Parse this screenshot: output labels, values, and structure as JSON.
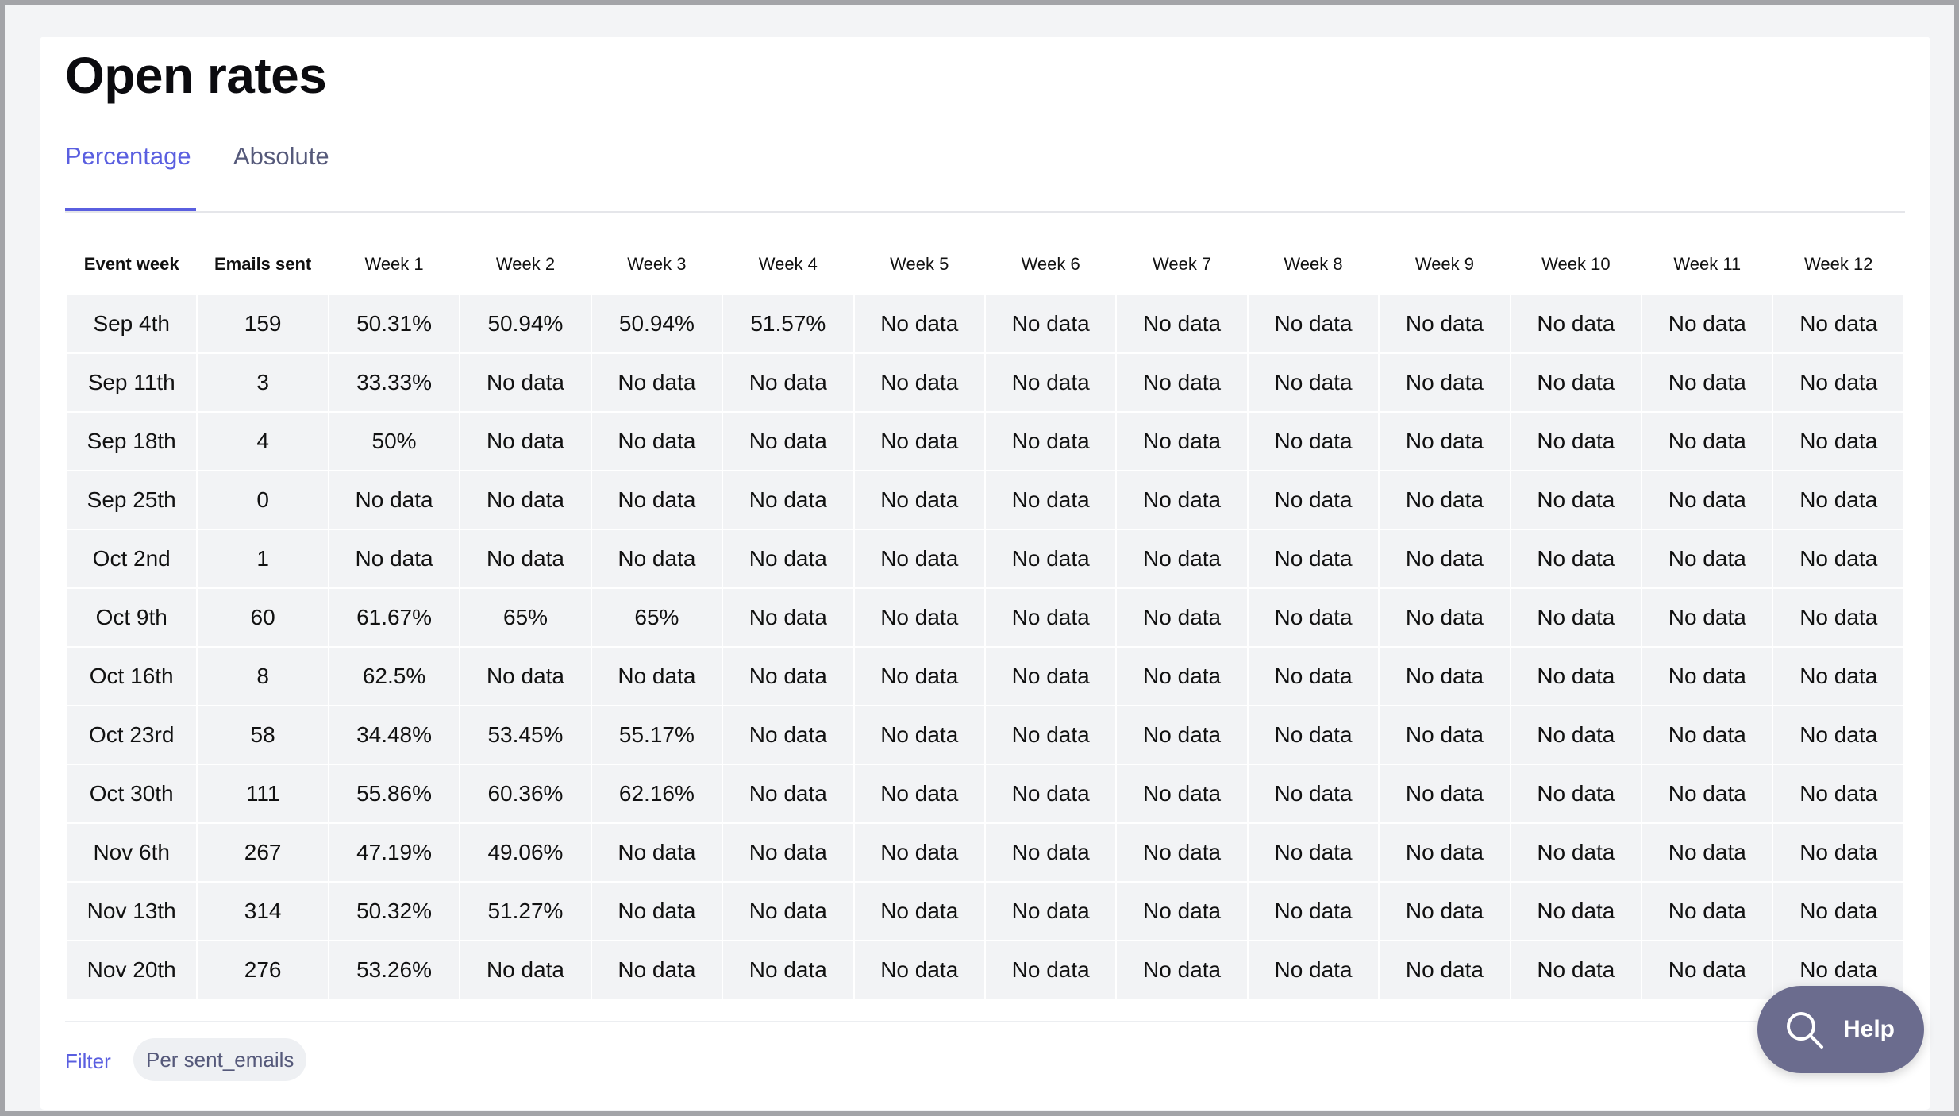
{
  "page": {
    "title": "Open rates"
  },
  "tabs": [
    {
      "label": "Percentage",
      "active": true
    },
    {
      "label": "Absolute",
      "active": false
    }
  ],
  "table": {
    "columns": [
      "Event week",
      "Emails sent",
      "Week 1",
      "Week 2",
      "Week 3",
      "Week 4",
      "Week 5",
      "Week 6",
      "Week 7",
      "Week 8",
      "Week 9",
      "Week 10",
      "Week 11",
      "Week 12"
    ],
    "no_data_label": "No data",
    "rows": [
      {
        "event_week": "Sep 4th",
        "emails_sent": "159",
        "weeks": [
          "50.31%",
          "50.94%",
          "50.94%",
          "51.57%",
          null,
          null,
          null,
          null,
          null,
          null,
          null,
          null
        ]
      },
      {
        "event_week": "Sep 11th",
        "emails_sent": "3",
        "weeks": [
          "33.33%",
          null,
          null,
          null,
          null,
          null,
          null,
          null,
          null,
          null,
          null,
          null
        ]
      },
      {
        "event_week": "Sep 18th",
        "emails_sent": "4",
        "weeks": [
          "50%",
          null,
          null,
          null,
          null,
          null,
          null,
          null,
          null,
          null,
          null,
          null
        ]
      },
      {
        "event_week": "Sep 25th",
        "emails_sent": "0",
        "weeks": [
          null,
          null,
          null,
          null,
          null,
          null,
          null,
          null,
          null,
          null,
          null,
          null
        ]
      },
      {
        "event_week": "Oct 2nd",
        "emails_sent": "1",
        "weeks": [
          null,
          null,
          null,
          null,
          null,
          null,
          null,
          null,
          null,
          null,
          null,
          null
        ]
      },
      {
        "event_week": "Oct 9th",
        "emails_sent": "60",
        "weeks": [
          "61.67%",
          "65%",
          "65%",
          null,
          null,
          null,
          null,
          null,
          null,
          null,
          null,
          null
        ]
      },
      {
        "event_week": "Oct 16th",
        "emails_sent": "8",
        "weeks": [
          "62.5%",
          null,
          null,
          null,
          null,
          null,
          null,
          null,
          null,
          null,
          null,
          null
        ]
      },
      {
        "event_week": "Oct 23rd",
        "emails_sent": "58",
        "weeks": [
          "34.48%",
          "53.45%",
          "55.17%",
          null,
          null,
          null,
          null,
          null,
          null,
          null,
          null,
          null
        ]
      },
      {
        "event_week": "Oct 30th",
        "emails_sent": "111",
        "weeks": [
          "55.86%",
          "60.36%",
          "62.16%",
          null,
          null,
          null,
          null,
          null,
          null,
          null,
          null,
          null
        ]
      },
      {
        "event_week": "Nov 6th",
        "emails_sent": "267",
        "weeks": [
          "47.19%",
          "49.06%",
          null,
          null,
          null,
          null,
          null,
          null,
          null,
          null,
          null,
          null
        ]
      },
      {
        "event_week": "Nov 13th",
        "emails_sent": "314",
        "weeks": [
          "50.32%",
          "51.27%",
          null,
          null,
          null,
          null,
          null,
          null,
          null,
          null,
          null,
          null
        ]
      },
      {
        "event_week": "Nov 20th",
        "emails_sent": "276",
        "weeks": [
          "53.26%",
          null,
          null,
          null,
          null,
          null,
          null,
          null,
          null,
          null,
          null,
          null
        ]
      }
    ]
  },
  "filter": {
    "link_label": "Filter",
    "chip_label": "Per sent_emails"
  },
  "help": {
    "label": "Help",
    "icon": "search-icon"
  },
  "colors": {
    "accent": "#5a5fe0",
    "heat_low": "#dcdcf8",
    "heat_mid": "#babbf5",
    "heat_high": "#9b9cf0",
    "no_data_cell": "#f2f3f5",
    "help_button": "#6b6c8e"
  }
}
